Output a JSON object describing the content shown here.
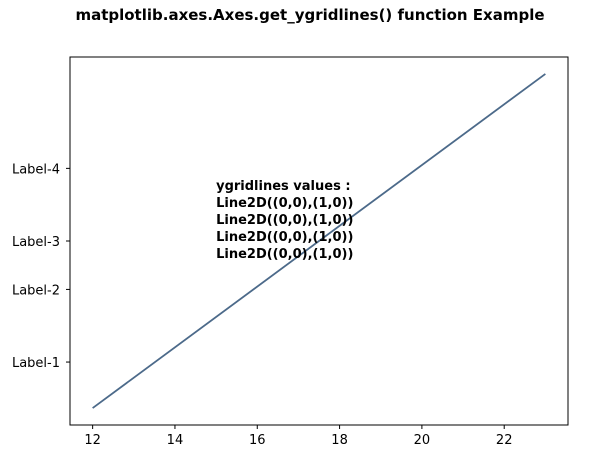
{
  "chart_data": {
    "type": "line",
    "title": "matplotlib.axes.Axes.get_ygridlines() function Example",
    "xlabel": "",
    "ylabel": "",
    "xlim": [
      11.45,
      23.55
    ],
    "ylim": [
      -0.3,
      7.3
    ],
    "xticks": [
      12,
      14,
      16,
      18,
      20,
      22
    ],
    "xtick_labels": [
      "12",
      "14",
      "16",
      "18",
      "20",
      "22"
    ],
    "yticks": [
      1,
      2.5,
      3.5,
      5
    ],
    "ytick_labels": [
      "Label-1",
      "Label-2",
      "Label-3",
      "Label-4"
    ],
    "grid": false,
    "series": [
      {
        "color": "#4c6a8a",
        "x": [
          12,
          23
        ],
        "y": [
          0.05,
          6.95
        ]
      }
    ],
    "annotation": {
      "x": 15,
      "y": 4.55,
      "lines": [
        "ygridlines values :",
        "Line2D((0,0),(1,0))",
        "Line2D((0,0),(1,0))",
        "Line2D((0,0),(1,0))",
        "Line2D((0,0),(1,0))"
      ]
    }
  }
}
